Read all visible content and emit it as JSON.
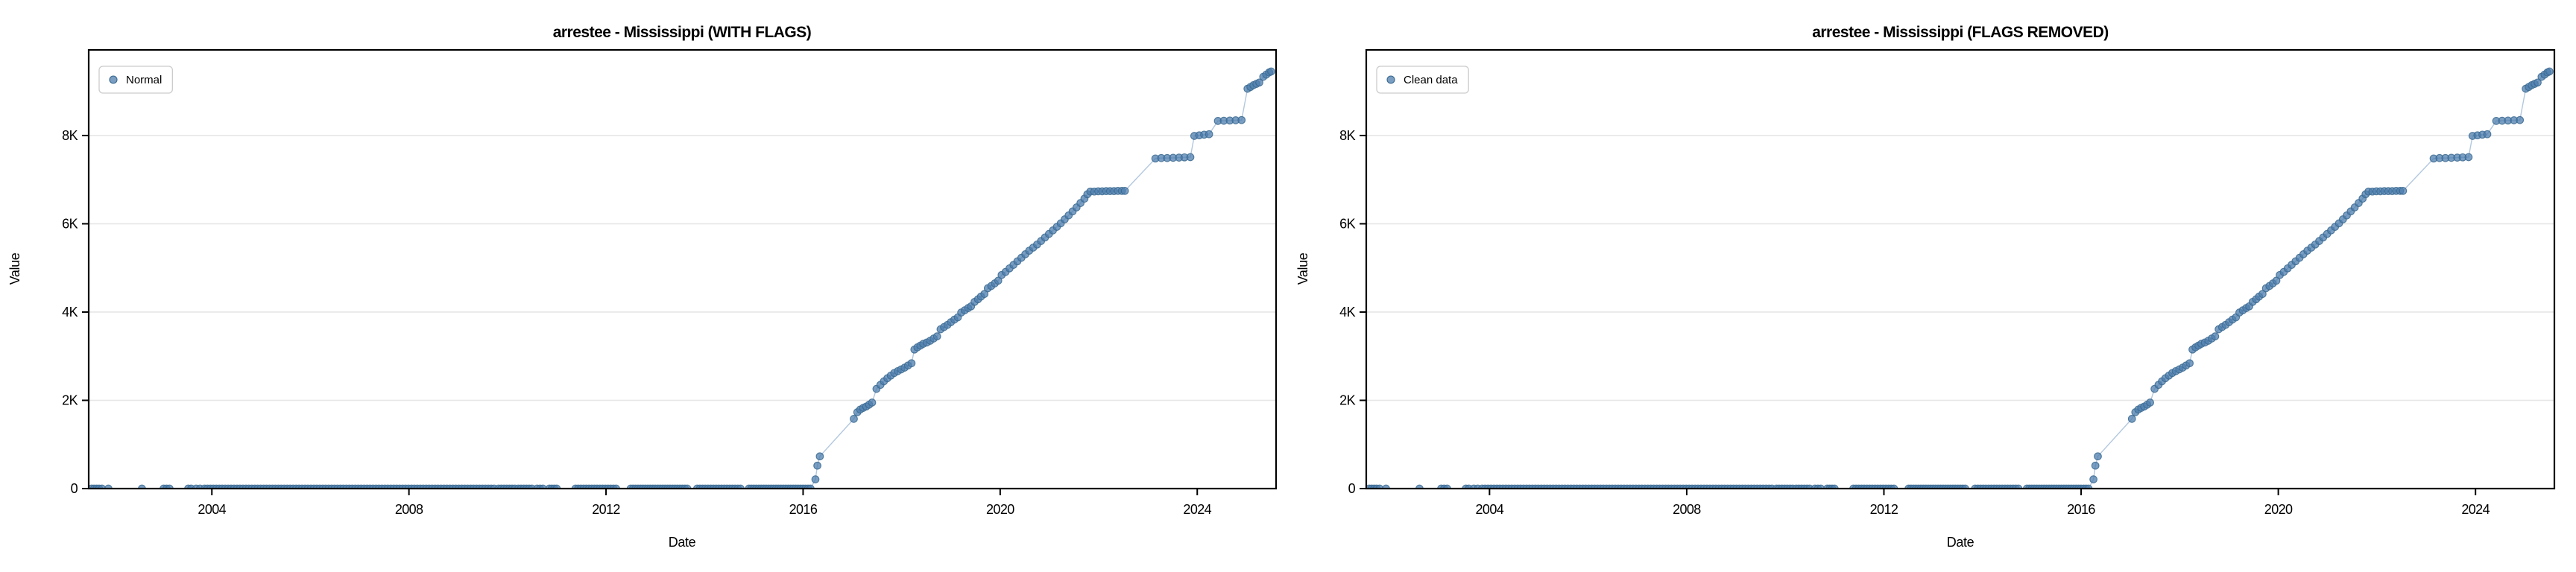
{
  "page": {
    "background": "#ffffff"
  },
  "chart_data": {
    "type": "scatter",
    "charts": [
      {
        "title": "arrestee - Mississippi (WITH FLAGS)",
        "legend_label": "Normal"
      },
      {
        "title": "arrestee - Mississippi (FLAGS REMOVED)",
        "legend_label": "Clean data"
      }
    ],
    "xlabel": "Date",
    "ylabel": "Value",
    "xlim": [
      2001.5,
      2025.6
    ],
    "ylim": [
      0,
      9940
    ],
    "x_ticks": [
      {
        "v": 2004,
        "label": "2004"
      },
      {
        "v": 2008,
        "label": "2008"
      },
      {
        "v": 2012,
        "label": "2012"
      },
      {
        "v": 2016,
        "label": "2016"
      },
      {
        "v": 2020,
        "label": "2020"
      },
      {
        "v": 2024,
        "label": "2024"
      }
    ],
    "y_ticks": [
      {
        "v": 0,
        "label": "0"
      },
      {
        "v": 2000,
        "label": "2K"
      },
      {
        "v": 4000,
        "label": "4K"
      },
      {
        "v": 6000,
        "label": "6K"
      },
      {
        "v": 8000,
        "label": "8K"
      }
    ],
    "grid": "horizontal-only",
    "legend_position": "upper-left",
    "style": {
      "marker_color": "#4d7eae",
      "marker_edge_color": "#39688f",
      "marker_opacity": 0.75,
      "line_color": "#7fa1c9",
      "line_opacity": 0.6,
      "grid_color": "#e6e6e6",
      "spine_color": "#000000",
      "text_color": "#000000",
      "background": "#ffffff"
    },
    "series": {
      "shared_by_both_charts": true,
      "zero_value_years_sparse": [
        2001.56,
        2001.61,
        2001.66,
        2001.71,
        2001.77,
        2001.9,
        2002.58,
        2003.02,
        2003.08,
        2003.14,
        2003.52,
        2003.58,
        2003.68,
        2003.76
      ],
      "zero_value_runs": [
        {
          "from": 2003.85,
          "to": 2009.75,
          "step": 0.06
        },
        {
          "from": 2009.82,
          "to": 2010.15,
          "step": 0.055
        },
        {
          "from": 2010.22,
          "to": 2010.5,
          "step": 0.055
        },
        {
          "from": 2010.6,
          "to": 2010.73,
          "step": 0.06
        },
        {
          "from": 2010.85,
          "to": 2011.0,
          "step": 0.05
        },
        {
          "from": 2011.38,
          "to": 2012.25,
          "step": 0.055
        },
        {
          "from": 2012.5,
          "to": 2013.65,
          "step": 0.05
        },
        {
          "from": 2013.85,
          "to": 2014.75,
          "step": 0.055
        },
        {
          "from": 2014.9,
          "to": 2016.18,
          "step": 0.05
        }
      ],
      "rise_points": [
        [
          2016.25,
          210
        ],
        [
          2016.29,
          520
        ],
        [
          2016.34,
          730
        ],
        [
          2017.03,
          1580
        ],
        [
          2017.1,
          1730
        ],
        [
          2017.16,
          1790
        ],
        [
          2017.22,
          1830
        ],
        [
          2017.28,
          1860
        ],
        [
          2017.34,
          1900
        ],
        [
          2017.4,
          1950
        ],
        [
          2017.49,
          2260
        ],
        [
          2017.57,
          2350
        ],
        [
          2017.64,
          2430
        ],
        [
          2017.71,
          2500
        ],
        [
          2017.78,
          2560
        ],
        [
          2017.85,
          2620
        ],
        [
          2017.92,
          2660
        ],
        [
          2017.99,
          2700
        ],
        [
          2018.06,
          2740
        ],
        [
          2018.13,
          2790
        ],
        [
          2018.2,
          2840
        ],
        [
          2018.26,
          3150
        ],
        [
          2018.32,
          3200
        ],
        [
          2018.38,
          3240
        ],
        [
          2018.44,
          3280
        ],
        [
          2018.51,
          3310
        ],
        [
          2018.58,
          3350
        ],
        [
          2018.65,
          3400
        ],
        [
          2018.72,
          3450
        ],
        [
          2018.79,
          3610
        ],
        [
          2018.86,
          3660
        ],
        [
          2018.93,
          3710
        ],
        [
          2019.0,
          3770
        ],
        [
          2019.07,
          3830
        ],
        [
          2019.14,
          3880
        ],
        [
          2019.21,
          3990
        ],
        [
          2019.28,
          4040
        ],
        [
          2019.35,
          4090
        ],
        [
          2019.41,
          4130
        ],
        [
          2019.48,
          4230
        ],
        [
          2019.55,
          4290
        ],
        [
          2019.61,
          4350
        ],
        [
          2019.68,
          4410
        ],
        [
          2019.75,
          4540
        ],
        [
          2019.82,
          4590
        ],
        [
          2019.89,
          4650
        ],
        [
          2019.96,
          4710
        ],
        [
          2020.03,
          4840
        ],
        [
          2020.11,
          4910
        ],
        [
          2020.19,
          4990
        ],
        [
          2020.27,
          5070
        ],
        [
          2020.35,
          5150
        ],
        [
          2020.43,
          5230
        ],
        [
          2020.51,
          5310
        ],
        [
          2020.59,
          5390
        ],
        [
          2020.67,
          5460
        ],
        [
          2020.75,
          5530
        ],
        [
          2020.83,
          5610
        ],
        [
          2020.91,
          5690
        ],
        [
          2020.99,
          5770
        ],
        [
          2021.07,
          5850
        ],
        [
          2021.15,
          5930
        ],
        [
          2021.23,
          6010
        ],
        [
          2021.31,
          6100
        ],
        [
          2021.39,
          6190
        ],
        [
          2021.47,
          6280
        ],
        [
          2021.55,
          6370
        ],
        [
          2021.63,
          6470
        ],
        [
          2021.71,
          6570
        ],
        [
          2021.77,
          6670
        ],
        [
          2021.83,
          6730
        ],
        [
          2021.91,
          6730
        ],
        [
          2021.99,
          6735
        ],
        [
          2022.07,
          6735
        ],
        [
          2022.15,
          6740
        ],
        [
          2022.23,
          6740
        ],
        [
          2022.31,
          6740
        ],
        [
          2022.39,
          6745
        ],
        [
          2022.47,
          6745
        ],
        [
          2022.53,
          6745
        ],
        [
          2023.15,
          7480
        ],
        [
          2023.27,
          7490
        ],
        [
          2023.39,
          7490
        ],
        [
          2023.51,
          7495
        ],
        [
          2023.63,
          7500
        ],
        [
          2023.74,
          7505
        ],
        [
          2023.86,
          7510
        ],
        [
          2023.94,
          7990
        ],
        [
          2024.04,
          8005
        ],
        [
          2024.14,
          8020
        ],
        [
          2024.24,
          8030
        ],
        [
          2024.42,
          8330
        ],
        [
          2024.54,
          8335
        ],
        [
          2024.66,
          8340
        ],
        [
          2024.78,
          8345
        ],
        [
          2024.9,
          8350
        ],
        [
          2025.02,
          9060
        ],
        [
          2025.08,
          9100
        ],
        [
          2025.14,
          9140
        ],
        [
          2025.2,
          9170
        ],
        [
          2025.26,
          9200
        ],
        [
          2025.34,
          9330
        ],
        [
          2025.4,
          9380
        ],
        [
          2025.46,
          9430
        ],
        [
          2025.5,
          9450
        ]
      ]
    }
  }
}
